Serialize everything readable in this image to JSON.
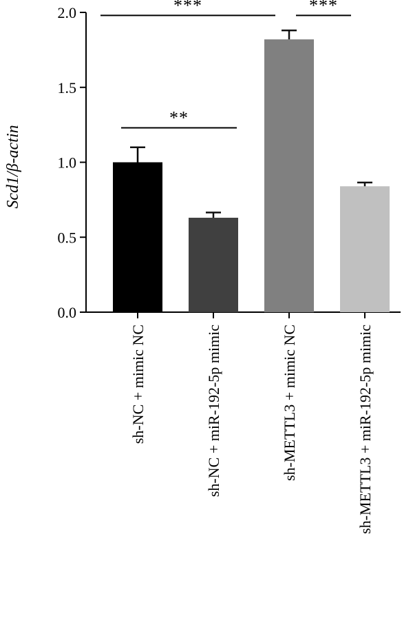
{
  "chart_data": {
    "type": "bar",
    "ylabel": "Scd1/β-actin",
    "ylim": [
      0,
      2.0
    ],
    "yticks": [
      "0.0",
      "0.5",
      "1.0",
      "1.5",
      "2.0"
    ],
    "categories": [
      "sh-NC + mimic NC",
      "sh-NC + miR-192-5p mimic",
      "sh-METTL3 + mimic NC",
      "sh-METTL3 + miR-192-5p mimic"
    ],
    "values": [
      1.0,
      0.63,
      1.82,
      0.84
    ],
    "errors": [
      0.1,
      0.035,
      0.06,
      0.025
    ],
    "colors": [
      "#000000",
      "#404040",
      "#808080",
      "#c0c0c0"
    ],
    "significance": [
      {
        "from": 0,
        "to": 1,
        "label": "**",
        "y": 1.23
      },
      {
        "from": 0,
        "to": 2,
        "label": "***",
        "y": 1.98
      },
      {
        "from": 2,
        "to": 3,
        "label": "***",
        "y": 1.98
      }
    ]
  }
}
